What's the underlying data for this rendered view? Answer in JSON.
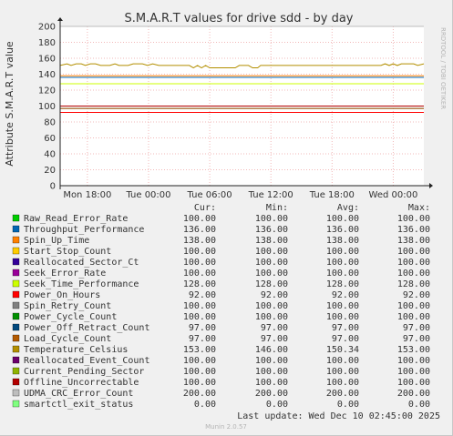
{
  "chart_data": {
    "type": "line",
    "title": "S.M.A.R.T values for drive sdd - by day",
    "ylabel": "Attribute S.M.A.R.T value",
    "watermark": "RRDTOOL / TOBI OETIKER",
    "ylim": [
      0,
      200
    ],
    "yticks": [
      0,
      20,
      40,
      60,
      80,
      100,
      120,
      140,
      160,
      180,
      200
    ],
    "xlim": [
      "Mon 15:20",
      "Wed 03:00"
    ],
    "x_ticks": [
      {
        "label": "Mon 18:00",
        "hour": 18
      },
      {
        "label": "Tue 00:00",
        "hour": 24
      },
      {
        "label": "Tue 06:00",
        "hour": 30
      },
      {
        "label": "Tue 12:00",
        "hour": 36
      },
      {
        "label": "Tue 18:00",
        "hour": 42
      },
      {
        "label": "Wed 00:00",
        "hour": 48
      }
    ],
    "x_start_hour": 15.33,
    "x_end_hour": 51,
    "grid": true,
    "legend_headers": {
      "cur": "Cur:",
      "min": "Min:",
      "avg": "Avg:",
      "max": "Max:"
    },
    "series": [
      {
        "name": "Raw_Read_Error_Rate",
        "color": "#00cc00",
        "cur": "100.00",
        "min": "100.00",
        "avg": "100.00",
        "max": "100.00",
        "value": 100
      },
      {
        "name": "Throughput_Performance",
        "color": "#0066b3",
        "cur": "136.00",
        "min": "136.00",
        "avg": "136.00",
        "max": "136.00",
        "value": 136
      },
      {
        "name": "Spin_Up_Time",
        "color": "#ff8000",
        "cur": "138.00",
        "min": "138.00",
        "avg": "138.00",
        "max": "138.00",
        "value": 138
      },
      {
        "name": "Start_Stop_Count",
        "color": "#ffcc00",
        "cur": "100.00",
        "min": "100.00",
        "avg": "100.00",
        "max": "100.00",
        "value": 100
      },
      {
        "name": "Reallocated_Sector_Ct",
        "color": "#330099",
        "cur": "100.00",
        "min": "100.00",
        "avg": "100.00",
        "max": "100.00",
        "value": 100
      },
      {
        "name": "Seek_Error_Rate",
        "color": "#990099",
        "cur": "100.00",
        "min": "100.00",
        "avg": "100.00",
        "max": "100.00",
        "value": 100
      },
      {
        "name": "Seek_Time_Performance",
        "color": "#ccff00",
        "cur": "128.00",
        "min": "128.00",
        "avg": "128.00",
        "max": "128.00",
        "value": 128
      },
      {
        "name": "Power_On_Hours",
        "color": "#ff0000",
        "cur": "92.00",
        "min": "92.00",
        "avg": "92.00",
        "max": "92.00",
        "value": 92
      },
      {
        "name": "Spin_Retry_Count",
        "color": "#808080",
        "cur": "100.00",
        "min": "100.00",
        "avg": "100.00",
        "max": "100.00",
        "value": 100
      },
      {
        "name": "Power_Cycle_Count",
        "color": "#008f00",
        "cur": "100.00",
        "min": "100.00",
        "avg": "100.00",
        "max": "100.00",
        "value": 100
      },
      {
        "name": "Power_Off_Retract_Count",
        "color": "#00487d",
        "cur": "97.00",
        "min": "97.00",
        "avg": "97.00",
        "max": "97.00",
        "value": 97
      },
      {
        "name": "Load_Cycle_Count",
        "color": "#b35a00",
        "cur": "97.00",
        "min": "97.00",
        "avg": "97.00",
        "max": "97.00",
        "value": 97
      },
      {
        "name": "Temperature_Celsius",
        "color": "#b38f00",
        "cur": "153.00",
        "min": "146.00",
        "avg": "150.34",
        "max": "153.00",
        "value": 153,
        "profile": [
          [
            15.33,
            151
          ],
          [
            16.0,
            153
          ],
          [
            16.4,
            151
          ],
          [
            16.9,
            153
          ],
          [
            17.4,
            153
          ],
          [
            17.8,
            151
          ],
          [
            18.3,
            153
          ],
          [
            18.8,
            153
          ],
          [
            19.3,
            151
          ],
          [
            20.2,
            151
          ],
          [
            20.7,
            153
          ],
          [
            21.1,
            151
          ],
          [
            22.0,
            151
          ],
          [
            22.5,
            153
          ],
          [
            23.4,
            153
          ],
          [
            23.9,
            151
          ],
          [
            24.4,
            153
          ],
          [
            25.0,
            151
          ],
          [
            27.0,
            151
          ],
          [
            28.0,
            151
          ],
          [
            28.4,
            148
          ],
          [
            28.8,
            151
          ],
          [
            29.2,
            148
          ],
          [
            29.6,
            151
          ],
          [
            30.0,
            148
          ],
          [
            32.5,
            148
          ],
          [
            32.9,
            151
          ],
          [
            33.8,
            151
          ],
          [
            34.2,
            148
          ],
          [
            34.7,
            148
          ],
          [
            35.0,
            151
          ],
          [
            46.8,
            151
          ],
          [
            47.2,
            153
          ],
          [
            47.6,
            151
          ],
          [
            48.0,
            153
          ],
          [
            48.4,
            151
          ],
          [
            48.8,
            153
          ],
          [
            49.2,
            153
          ],
          [
            50.0,
            153
          ],
          [
            50.4,
            151
          ],
          [
            51.0,
            153
          ]
        ]
      },
      {
        "name": "Reallocated_Event_Count",
        "color": "#6b006b",
        "cur": "100.00",
        "min": "100.00",
        "avg": "100.00",
        "max": "100.00",
        "value": 100
      },
      {
        "name": "Current_Pending_Sector",
        "color": "#8fb300",
        "cur": "100.00",
        "min": "100.00",
        "avg": "100.00",
        "max": "100.00",
        "value": 100
      },
      {
        "name": "Offline_Uncorrectable",
        "color": "#b30000",
        "cur": "100.00",
        "min": "100.00",
        "avg": "100.00",
        "max": "100.00",
        "value": 100
      },
      {
        "name": "UDMA_CRC_Error_Count",
        "color": "#bebebe",
        "cur": "200.00",
        "min": "200.00",
        "avg": "200.00",
        "max": "200.00",
        "value": 200
      },
      {
        "name": "smartctl_exit_status",
        "color": "#80ff80",
        "cur": "0.00",
        "min": "0.00",
        "avg": "0.00",
        "max": "0.00",
        "value": 0
      }
    ]
  },
  "footer": {
    "last_update": "Last update: Wed Dec 10 02:45:00 2025",
    "version": "Munin 2.0.57"
  }
}
